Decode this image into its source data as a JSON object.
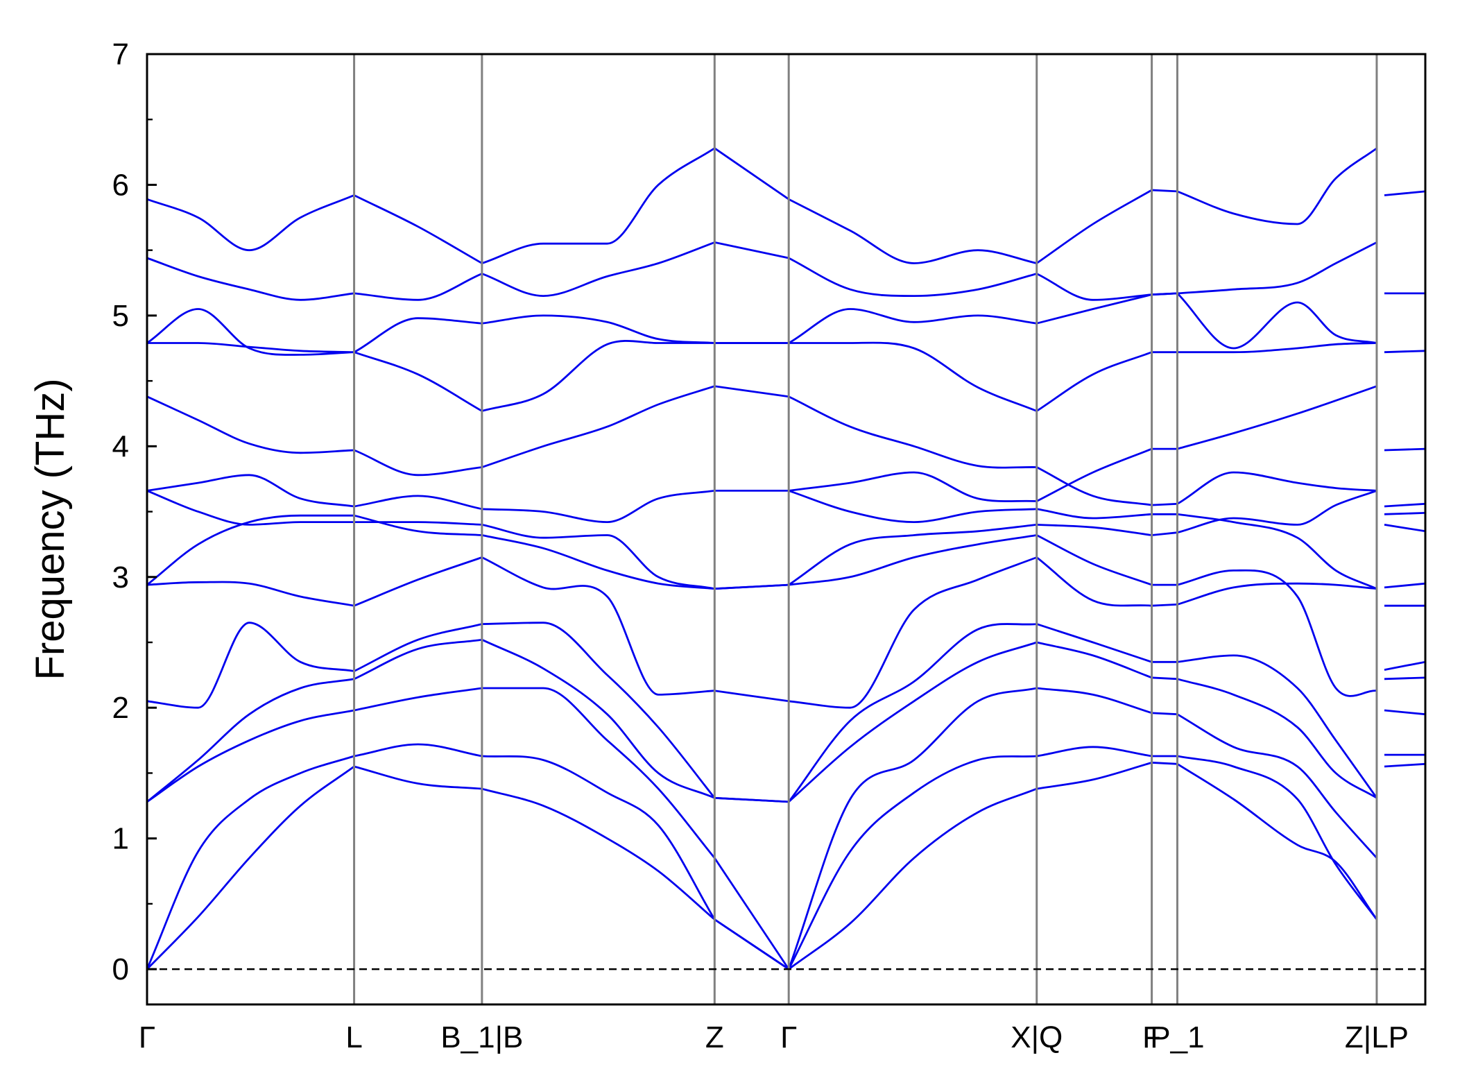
{
  "chart_data": {
    "type": "line",
    "title": "",
    "xlabel": "",
    "ylabel": "Frequency (THz)",
    "ylim": [
      -0.27,
      7.0
    ],
    "xlim": [
      0,
      10
    ],
    "grid": false,
    "legend": "none",
    "colors": {
      "band": "#0000ee",
      "kline": "#808080",
      "zero": "#000000",
      "axis": "#000000"
    },
    "y_ticks": [
      {
        "value": 0,
        "label": "0"
      },
      {
        "value": 1,
        "label": "1"
      },
      {
        "value": 2,
        "label": "2"
      },
      {
        "value": 3,
        "label": "3"
      },
      {
        "value": 4,
        "label": "4"
      },
      {
        "value": 5,
        "label": "5"
      },
      {
        "value": 6,
        "label": "6"
      },
      {
        "value": 7,
        "label": "7"
      }
    ],
    "y_minor_ticks": [
      0.5,
      1.5,
      2.5,
      3.5,
      4.5,
      5.5,
      6.5
    ],
    "kpoints": [
      {
        "label": "Γ",
        "pos": 0.0
      },
      {
        "label": "L",
        "pos": 1.62
      },
      {
        "label": "B_1|B",
        "pos": 2.62
      },
      {
        "label": "Z",
        "pos": 4.44
      },
      {
        "label": "Γ",
        "pos": 5.02
      },
      {
        "label": "X|Q",
        "pos": 6.96
      },
      {
        "label": "F",
        "pos": 7.86
      },
      {
        "label": "P_1",
        "pos": 8.06
      },
      {
        "label": "Z|LP",
        "pos": 9.62
      }
    ],
    "kline_positions": [
      1.62,
      2.62,
      4.44,
      5.02,
      6.96,
      7.86,
      8.06,
      9.62
    ],
    "segments": [
      {
        "x": [
          0.0,
          0.4,
          0.8,
          1.2,
          1.62
        ],
        "bands": [
          [
            0.0,
            0.4,
            0.85,
            1.25,
            1.55
          ],
          [
            0.0,
            0.9,
            1.3,
            1.5,
            1.63
          ],
          [
            1.28,
            1.55,
            1.75,
            1.9,
            1.98
          ],
          [
            1.28,
            1.6,
            1.95,
            2.15,
            2.22
          ],
          [
            2.05,
            2.0,
            2.65,
            2.35,
            2.28
          ],
          [
            2.94,
            2.96,
            2.95,
            2.85,
            2.78
          ],
          [
            2.94,
            3.25,
            3.42,
            3.47,
            3.47
          ],
          [
            3.66,
            3.5,
            3.4,
            3.42,
            3.42
          ],
          [
            3.66,
            3.72,
            3.78,
            3.6,
            3.54
          ],
          [
            4.38,
            4.2,
            4.02,
            3.95,
            3.97
          ],
          [
            4.79,
            4.79,
            4.76,
            4.73,
            4.72
          ],
          [
            4.79,
            5.05,
            4.75,
            4.7,
            4.72
          ],
          [
            5.44,
            5.3,
            5.2,
            5.12,
            5.17
          ],
          [
            5.89,
            5.75,
            5.5,
            5.75,
            5.92
          ]
        ]
      },
      {
        "x": [
          1.62,
          2.12,
          2.62
        ],
        "bands": [
          [
            1.55,
            1.42,
            1.38
          ],
          [
            1.63,
            1.72,
            1.63
          ],
          [
            1.98,
            2.08,
            2.15
          ],
          [
            2.22,
            2.45,
            2.52
          ],
          [
            2.28,
            2.52,
            2.64
          ],
          [
            2.78,
            2.98,
            3.15
          ],
          [
            3.47,
            3.35,
            3.32
          ],
          [
            3.42,
            3.42,
            3.4
          ],
          [
            3.54,
            3.62,
            3.52
          ],
          [
            3.97,
            3.78,
            3.84
          ],
          [
            4.72,
            4.55,
            4.27
          ],
          [
            4.72,
            4.98,
            4.94
          ],
          [
            5.17,
            5.12,
            5.32
          ],
          [
            5.92,
            5.68,
            5.4
          ]
        ]
      },
      {
        "x": [
          2.62,
          3.1,
          3.6,
          4.0,
          4.44
        ],
        "bands": [
          [
            1.38,
            1.25,
            1.0,
            0.75,
            0.38
          ],
          [
            1.63,
            1.6,
            1.35,
            1.1,
            0.38
          ],
          [
            2.15,
            2.15,
            1.75,
            1.38,
            0.85
          ],
          [
            2.52,
            2.3,
            1.95,
            1.5,
            1.31
          ],
          [
            2.64,
            2.65,
            2.25,
            1.85,
            1.31
          ],
          [
            3.15,
            2.92,
            2.85,
            2.1,
            2.13
          ],
          [
            3.32,
            3.22,
            3.05,
            2.95,
            2.91
          ],
          [
            3.4,
            3.3,
            3.32,
            3.0,
            2.91
          ],
          [
            3.52,
            3.5,
            3.42,
            3.6,
            3.66
          ],
          [
            3.84,
            4.0,
            4.15,
            4.32,
            4.46
          ],
          [
            4.27,
            4.4,
            4.78,
            4.79,
            4.79
          ],
          [
            4.94,
            5.0,
            4.95,
            4.82,
            4.79
          ],
          [
            5.32,
            5.15,
            5.3,
            5.4,
            5.56
          ],
          [
            5.4,
            5.55,
            5.55,
            6.0,
            6.28
          ]
        ]
      },
      {
        "x": [
          4.44,
          5.02
        ],
        "bands": [
          [
            0.38,
            0.0
          ],
          [
            0.38,
            0.0
          ],
          [
            0.85,
            0.0
          ],
          [
            1.31,
            1.28
          ],
          [
            1.31,
            1.28
          ],
          [
            2.13,
            2.05
          ],
          [
            2.91,
            2.94
          ],
          [
            2.91,
            2.94
          ],
          [
            3.66,
            3.66
          ],
          [
            4.46,
            4.38
          ],
          [
            4.79,
            4.79
          ],
          [
            4.79,
            4.79
          ],
          [
            5.56,
            5.44
          ],
          [
            6.28,
            5.89
          ]
        ]
      },
      {
        "x": [
          5.02,
          5.5,
          6.0,
          6.5,
          6.96
        ],
        "bands": [
          [
            0.0,
            0.35,
            0.85,
            1.2,
            1.38
          ],
          [
            0.0,
            0.9,
            1.35,
            1.6,
            1.63
          ],
          [
            0.0,
            1.3,
            1.6,
            2.05,
            2.15
          ],
          [
            1.28,
            1.7,
            2.05,
            2.35,
            2.5
          ],
          [
            1.28,
            1.9,
            2.2,
            2.6,
            2.64
          ],
          [
            2.05,
            2.0,
            2.75,
            2.98,
            3.15
          ],
          [
            2.94,
            3.0,
            3.15,
            3.25,
            3.32
          ],
          [
            2.94,
            3.25,
            3.32,
            3.35,
            3.4
          ],
          [
            3.66,
            3.5,
            3.42,
            3.5,
            3.52
          ],
          [
            3.66,
            3.72,
            3.8,
            3.6,
            3.58
          ],
          [
            4.38,
            4.15,
            4.0,
            3.85,
            3.84
          ],
          [
            4.79,
            4.79,
            4.75,
            4.45,
            4.27
          ],
          [
            4.79,
            5.05,
            4.95,
            5.0,
            4.94
          ],
          [
            5.44,
            5.2,
            5.15,
            5.2,
            5.32
          ],
          [
            5.89,
            5.65,
            5.4,
            5.5,
            5.4
          ]
        ]
      },
      {
        "x": [
          6.96,
          7.4,
          7.86
        ],
        "bands": [
          [
            1.38,
            1.45,
            1.58
          ],
          [
            1.63,
            1.7,
            1.63
          ],
          [
            2.15,
            2.1,
            1.96
          ],
          [
            2.5,
            2.4,
            2.23
          ],
          [
            2.64,
            2.5,
            2.35
          ],
          [
            3.15,
            2.82,
            2.78
          ],
          [
            3.32,
            3.1,
            2.94
          ],
          [
            3.4,
            3.38,
            3.32
          ],
          [
            3.52,
            3.45,
            3.48
          ],
          [
            3.58,
            3.8,
            3.98
          ],
          [
            3.84,
            3.62,
            3.55
          ],
          [
            4.27,
            4.55,
            4.72
          ],
          [
            4.94,
            5.05,
            5.16
          ],
          [
            5.32,
            5.12,
            5.16
          ],
          [
            5.4,
            5.7,
            5.96
          ]
        ]
      },
      {
        "x": [
          7.86,
          8.06
        ],
        "bands": [
          [
            1.58,
            1.57
          ],
          [
            1.63,
            1.63
          ],
          [
            1.96,
            1.95
          ],
          [
            2.23,
            2.22
          ],
          [
            2.35,
            2.35
          ],
          [
            2.78,
            2.79
          ],
          [
            2.94,
            2.94
          ],
          [
            3.32,
            3.34
          ],
          [
            3.48,
            3.48
          ],
          [
            3.98,
            3.98
          ],
          [
            3.55,
            3.56
          ],
          [
            4.72,
            4.72
          ],
          [
            5.16,
            5.17
          ],
          [
            5.16,
            5.17
          ],
          [
            5.96,
            5.95
          ]
        ]
      },
      {
        "x": [
          8.06,
          8.5,
          9.0,
          9.3,
          9.62
        ],
        "bands": [
          [
            1.57,
            1.3,
            0.95,
            0.82,
            0.38
          ],
          [
            1.63,
            1.55,
            1.3,
            0.8,
            0.38
          ],
          [
            1.95,
            1.7,
            1.55,
            1.2,
            0.85
          ],
          [
            2.22,
            2.1,
            1.85,
            1.5,
            1.31
          ],
          [
            2.35,
            2.4,
            2.15,
            1.75,
            1.31
          ],
          [
            2.79,
            2.92,
            2.95,
            2.94,
            2.91
          ],
          [
            2.94,
            3.05,
            2.85,
            2.15,
            2.13
          ],
          [
            3.34,
            3.45,
            3.4,
            3.55,
            3.66
          ],
          [
            3.48,
            3.42,
            3.3,
            3.05,
            2.91
          ],
          [
            3.98,
            4.1,
            4.25,
            4.35,
            4.46
          ],
          [
            3.56,
            3.8,
            3.72,
            3.68,
            3.66
          ],
          [
            4.72,
            4.72,
            4.75,
            4.78,
            4.79
          ],
          [
            5.17,
            5.2,
            5.25,
            5.4,
            5.56
          ],
          [
            5.17,
            4.75,
            5.1,
            4.85,
            4.79
          ],
          [
            5.95,
            5.78,
            5.7,
            6.05,
            6.28
          ]
        ]
      },
      {
        "x": [
          9.62,
          9.68,
          10.0
        ],
        "bands": [
          [
            null,
            1.55,
            1.57
          ],
          [
            null,
            1.64,
            1.64
          ],
          [
            null,
            1.98,
            1.95
          ],
          [
            null,
            2.22,
            2.23
          ],
          [
            null,
            2.29,
            2.35
          ],
          [
            null,
            2.78,
            2.78
          ],
          [
            null,
            2.92,
            2.95
          ],
          [
            null,
            3.4,
            3.35
          ],
          [
            null,
            3.48,
            3.49
          ],
          [
            null,
            3.54,
            3.56
          ],
          [
            null,
            3.97,
            3.98
          ],
          [
            null,
            4.72,
            4.73
          ],
          [
            null,
            5.17,
            5.17
          ],
          [
            null,
            5.92,
            5.95
          ]
        ]
      }
    ]
  }
}
